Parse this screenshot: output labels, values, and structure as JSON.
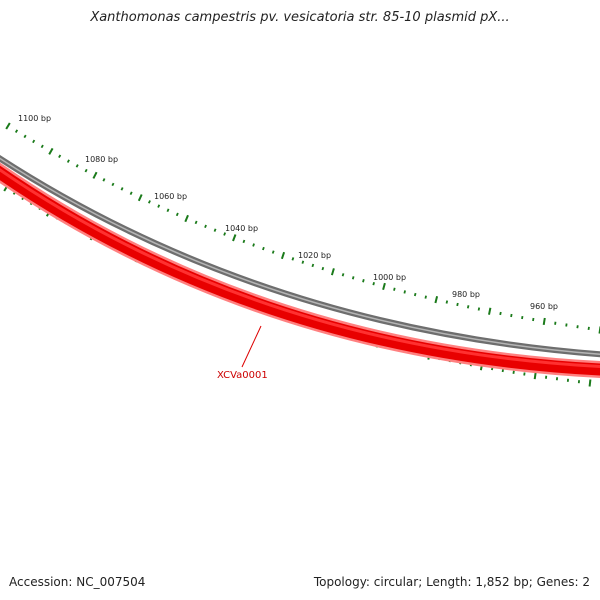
{
  "title": "Xanthomonas campestris pv. vesicatoria str. 85-10 plasmid pX...",
  "accession_text": "Accession: NC_007504",
  "summary_text": "Topology: circular; Length: 1,852 bp; Genes: 2",
  "ticks": {
    "labels": [
      "1100 bp",
      "1080 bp",
      "1060 bp",
      "1040 bp",
      "1020 bp",
      "1000 bp",
      "980 bp",
      "960 bp"
    ]
  },
  "gene": {
    "label": "XCVa0001"
  },
  "colors": {
    "tick": "#1a7a1a",
    "backbone": "#888888",
    "gene": "#ee0000",
    "gene_edge": "#ff7777",
    "gene_label": "#cc0000"
  }
}
